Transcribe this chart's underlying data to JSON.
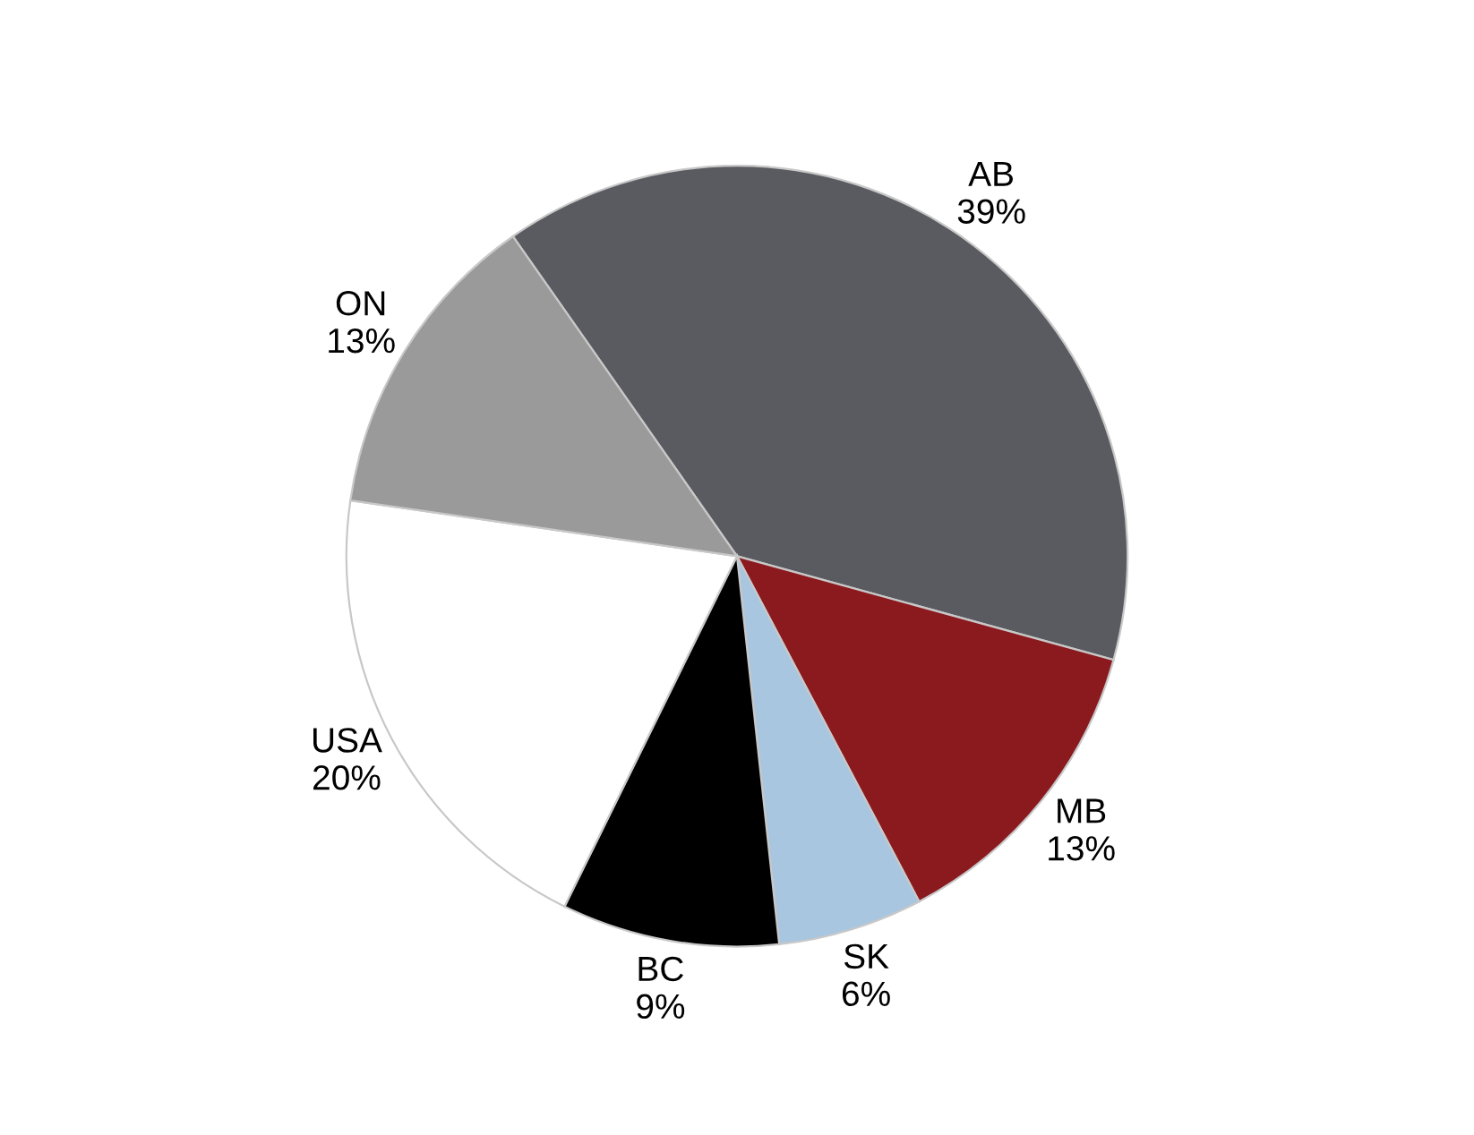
{
  "chart_data": {
    "type": "pie",
    "categories": [
      "AB",
      "MB",
      "SK",
      "BC",
      "USA",
      "ON"
    ],
    "values": [
      39,
      13,
      6,
      9,
      20,
      13
    ],
    "colors": [
      "#5a5b60",
      "#8b1a1f",
      "#a9c6e0",
      "#000000",
      "#ffffff",
      "#9a9a9a"
    ],
    "value_labels": [
      "39%",
      "13%",
      "6%",
      "9%",
      "20%",
      "13%"
    ],
    "legend": false
  }
}
